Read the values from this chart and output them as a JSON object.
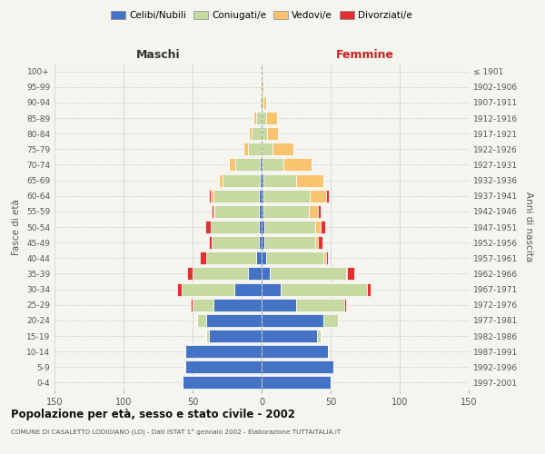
{
  "age_groups": [
    "100+",
    "95-99",
    "90-94",
    "85-89",
    "80-84",
    "75-79",
    "70-74",
    "65-69",
    "60-64",
    "55-59",
    "50-54",
    "45-49",
    "40-44",
    "35-39",
    "30-34",
    "25-29",
    "20-24",
    "15-19",
    "10-14",
    "5-9",
    "0-4"
  ],
  "birth_years": [
    "≤ 1901",
    "1902-1906",
    "1907-1911",
    "1912-1916",
    "1917-1921",
    "1922-1926",
    "1927-1931",
    "1932-1936",
    "1937-1941",
    "1942-1946",
    "1947-1951",
    "1952-1956",
    "1957-1961",
    "1962-1966",
    "1967-1971",
    "1972-1976",
    "1977-1981",
    "1982-1986",
    "1987-1991",
    "1992-1996",
    "1997-2001"
  ],
  "male": {
    "celibi": [
      0,
      0,
      0,
      0,
      0,
      0,
      1,
      1,
      2,
      2,
      2,
      2,
      4,
      10,
      20,
      35,
      40,
      38,
      55,
      55,
      57
    ],
    "coniugati": [
      0,
      0,
      1,
      4,
      7,
      10,
      18,
      27,
      33,
      32,
      35,
      34,
      36,
      40,
      38,
      15,
      7,
      2,
      0,
      0,
      0
    ],
    "vedovi": [
      0,
      0,
      0,
      2,
      2,
      3,
      5,
      3,
      2,
      1,
      0,
      0,
      0,
      0,
      0,
      0,
      0,
      0,
      0,
      0,
      0
    ],
    "divorziati": [
      0,
      0,
      0,
      0,
      0,
      0,
      0,
      0,
      1,
      1,
      4,
      2,
      5,
      4,
      3,
      1,
      0,
      0,
      0,
      0,
      0
    ]
  },
  "female": {
    "nubili": [
      0,
      0,
      0,
      0,
      0,
      0,
      0,
      1,
      1,
      1,
      2,
      2,
      3,
      6,
      14,
      25,
      45,
      40,
      48,
      52,
      50
    ],
    "coniugate": [
      0,
      0,
      1,
      3,
      4,
      8,
      16,
      24,
      34,
      33,
      37,
      37,
      42,
      55,
      62,
      35,
      10,
      3,
      0,
      0,
      0
    ],
    "vedove": [
      0,
      1,
      2,
      8,
      8,
      15,
      20,
      20,
      12,
      7,
      4,
      2,
      2,
      1,
      0,
      0,
      0,
      0,
      0,
      0,
      0
    ],
    "divorziate": [
      0,
      0,
      0,
      0,
      0,
      0,
      0,
      0,
      2,
      2,
      3,
      3,
      1,
      5,
      3,
      1,
      0,
      0,
      0,
      0,
      0
    ]
  },
  "colors": {
    "celibi": "#4472c4",
    "coniugati": "#c5d9a0",
    "vedovi": "#f9c370",
    "divorziati": "#e03030"
  },
  "title": "Popolazione per età, sesso e stato civile - 2002",
  "subtitle": "COMUNE DI CASALETTO LODIGIANO (LO) - Dati ISTAT 1° gennaio 2002 - Elaborazione TUTTAITALIA.IT",
  "xlabel_left": "Maschi",
  "xlabel_right": "Femmine",
  "ylabel_left": "Fasce di età",
  "ylabel_right": "Anni di nascita",
  "xlim": 150,
  "legend_labels": [
    "Celibi/Nubili",
    "Coniugati/e",
    "Vedovi/e",
    "Divorziati/e"
  ],
  "background_color": "#f5f5f0",
  "bar_edge_color": "#ffffff"
}
